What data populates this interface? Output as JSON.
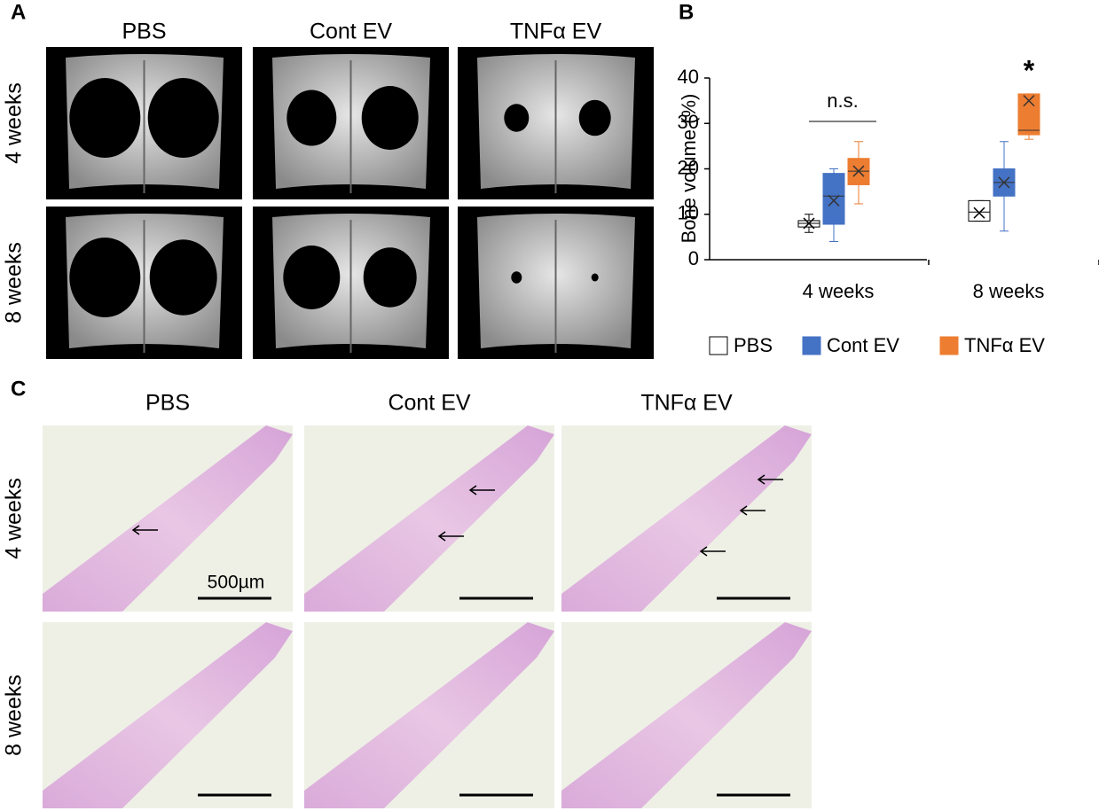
{
  "panel_labels": [
    "A",
    "B",
    "C"
  ],
  "panel_a": {
    "columns": [
      "PBS",
      "Cont EV",
      "TNFα EV"
    ],
    "rows": [
      "4 weeks",
      "8 weeks"
    ]
  },
  "chart_data": {
    "type": "box",
    "y_label": "Bone volume (%)",
    "categories": [
      "4 weeks",
      "8 weeks"
    ],
    "ylim": [
      0,
      40
    ],
    "yticks": [
      0,
      10,
      20,
      30,
      40
    ],
    "annotations": [
      "n.s.",
      "*"
    ],
    "series": [
      {
        "name": "PBS",
        "color": "#ffffff",
        "min": [
          6,
          8.5
        ],
        "q1": [
          7.2,
          8.5
        ],
        "median": [
          8,
          10.5
        ],
        "q3": [
          8.6,
          13
        ],
        "max": [
          10,
          13
        ],
        "mean": [
          8,
          10.3
        ]
      },
      {
        "name": "Cont EV",
        "color": "#4472c4",
        "min": [
          4,
          6.3
        ],
        "q1": [
          7.8,
          14
        ],
        "median": [
          14,
          17
        ],
        "q3": [
          19,
          20
        ],
        "max": [
          20,
          26
        ],
        "mean": [
          13,
          17
        ]
      },
      {
        "name": "TNFα EV",
        "color": "#ed7d31",
        "min": [
          12.3,
          26.5
        ],
        "q1": [
          16.5,
          27.5
        ],
        "median": [
          19.5,
          28.5
        ],
        "q3": [
          22.3,
          36.5
        ],
        "max": [
          26,
          36.5
        ],
        "mean": [
          19.5,
          35
        ]
      }
    ]
  },
  "panel_c": {
    "columns": [
      "PBS",
      "Cont EV",
      "TNFα EV"
    ],
    "rows": [
      "4 weeks",
      "8 weeks"
    ],
    "scale_bar": "500µm"
  }
}
